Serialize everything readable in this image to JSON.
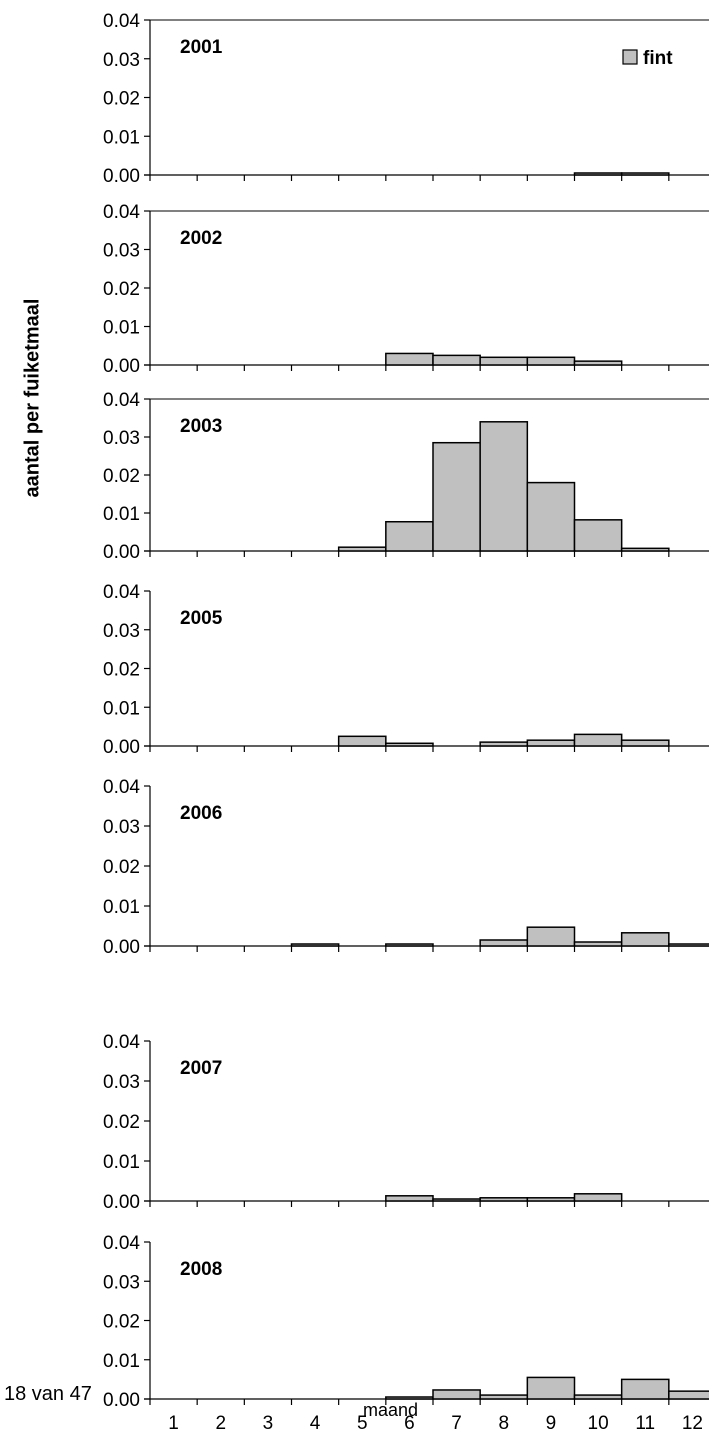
{
  "page": {
    "footer": "18 van 47",
    "ylabel": "aantal per fuiketmaal",
    "xlabel": "maand"
  },
  "chart_data": {
    "type": "bar",
    "legend": {
      "label": "fint",
      "color": "#c0c0c0",
      "placement": "top-right"
    },
    "categories": [
      "1",
      "2",
      "3",
      "4",
      "5",
      "6",
      "7",
      "8",
      "9",
      "10",
      "11",
      "12"
    ],
    "ylim": [
      0,
      0.04
    ],
    "yticks": [
      "0.04",
      "0.03",
      "0.02",
      "0.01",
      "0.00"
    ],
    "bar_color": "#c0c0c0",
    "panels": [
      {
        "year": "2001",
        "values": [
          0,
          0,
          0,
          0,
          0,
          0,
          0,
          0,
          0,
          0.0005,
          0.0005,
          0
        ]
      },
      {
        "year": "2002",
        "values": [
          0,
          0,
          0,
          0,
          0,
          0.003,
          0.0025,
          0.002,
          0.002,
          0.001,
          0,
          0
        ]
      },
      {
        "year": "2003",
        "values": [
          0,
          0,
          0,
          0,
          0.001,
          0.0077,
          0.0285,
          0.034,
          0.018,
          0.0082,
          0.0007,
          0
        ]
      },
      {
        "year": "2005",
        "values": [
          0,
          0,
          0,
          0,
          0.0025,
          0.0007,
          0,
          0.001,
          0.0015,
          0.003,
          0.0015,
          0
        ]
      },
      {
        "year": "2006",
        "values": [
          0,
          0,
          0,
          0.0005,
          0,
          0.0005,
          0,
          0.0015,
          0.0047,
          0.001,
          0.0033,
          0.0005
        ]
      },
      {
        "year": "2007",
        "values": [
          0,
          0,
          0,
          0,
          0,
          0.0013,
          0.0005,
          0.0008,
          0.0008,
          0.0018,
          0,
          0
        ]
      },
      {
        "year": "2008",
        "values": [
          0,
          0,
          0,
          0,
          0,
          0.0004,
          0.0023,
          0.001,
          0.0055,
          0.001,
          0.005,
          0.002
        ]
      }
    ]
  }
}
